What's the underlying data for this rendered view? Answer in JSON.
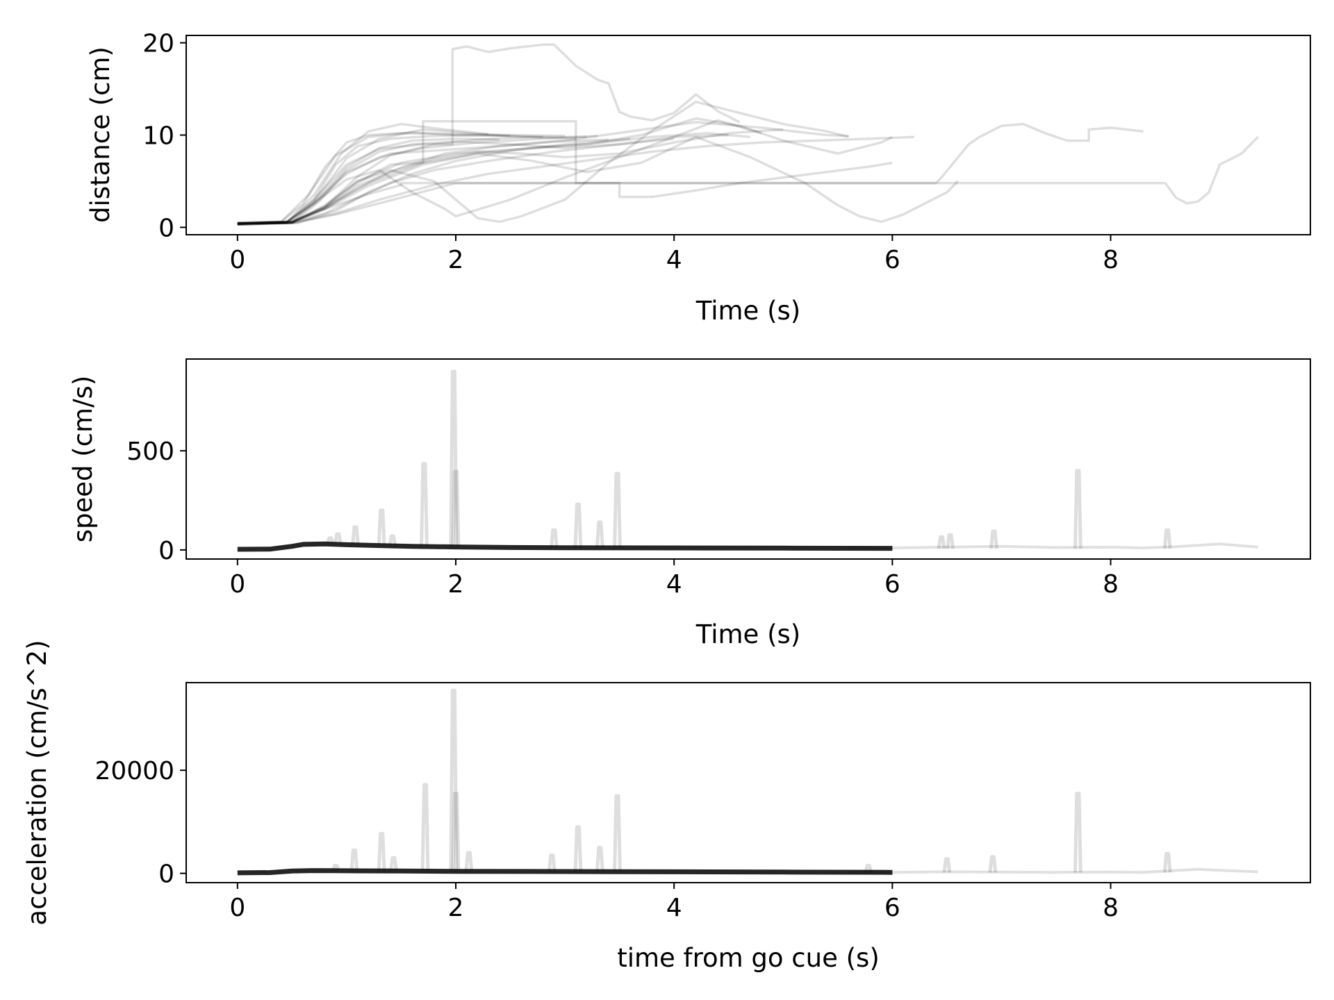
{
  "colors": {
    "trace": "#000000",
    "frame": "#000000",
    "background": "#ffffff"
  },
  "chart_data": [
    {
      "type": "line",
      "xlabel": "Time (s)",
      "ylabel": "distance (cm)",
      "xlim": [
        -0.47,
        9.83
      ],
      "ylim": [
        -0.8,
        20.8
      ],
      "xticks": [
        0,
        2,
        4,
        6,
        8
      ],
      "yticks": [
        0,
        10,
        20
      ],
      "grid": false,
      "series": [
        {
          "x": [
            0,
            0.4,
            0.6,
            0.8,
            1.0,
            1.2,
            1.5,
            2.0,
            2.5,
            3.0
          ],
          "y": [
            0.5,
            0.6,
            2.5,
            6.5,
            9.2,
            10.0,
            10.2,
            10.1,
            10.0,
            9.9
          ]
        },
        {
          "x": [
            0,
            0.45,
            0.7,
            0.9,
            1.1,
            1.4,
            1.8,
            2.3,
            2.8
          ],
          "y": [
            0.4,
            0.5,
            3.0,
            6.8,
            8.8,
            9.6,
            9.9,
            10.0,
            9.8
          ]
        },
        {
          "x": [
            0,
            0.5,
            0.8,
            1.1,
            1.4,
            1.8,
            2.2,
            2.7,
            3.2
          ],
          "y": [
            0.4,
            0.5,
            2.2,
            5.5,
            7.8,
            9.0,
            9.5,
            9.8,
            9.8
          ]
        },
        {
          "x": [
            0,
            0.45,
            0.7,
            1.0,
            1.3,
            1.7,
            2.1,
            2.6,
            3.1
          ],
          "y": [
            0.3,
            0.5,
            2.8,
            7.5,
            9.6,
            10.6,
            10.2,
            9.8,
            9.6
          ]
        },
        {
          "x": [
            0,
            0.5,
            0.8,
            1.1,
            1.5,
            1.9,
            2.4,
            2.9,
            3.4
          ],
          "y": [
            0.4,
            0.6,
            2.0,
            4.5,
            6.5,
            8.0,
            8.8,
            9.3,
            9.5
          ]
        },
        {
          "x": [
            0,
            0.4,
            0.65,
            0.9,
            1.2,
            1.6,
            2.0,
            2.5
          ],
          "y": [
            0.5,
            0.6,
            3.5,
            7.8,
            9.8,
            10.3,
            10.0,
            9.9
          ]
        },
        {
          "x": [
            0,
            0.55,
            0.9,
            1.2,
            1.6,
            2.0,
            2.5,
            3.0,
            3.6
          ],
          "y": [
            0.3,
            0.5,
            1.8,
            3.8,
            5.8,
            7.2,
            8.3,
            9.0,
            9.6
          ]
        },
        {
          "x": [
            0,
            0.5,
            0.75,
            1.0,
            1.3,
            1.6,
            2.0,
            2.4
          ],
          "y": [
            0.4,
            0.6,
            3.2,
            6.5,
            8.6,
            9.4,
            9.6,
            9.5
          ]
        },
        {
          "x": [
            0,
            0.45,
            0.7,
            1.0,
            1.3,
            1.7,
            2.2,
            2.8,
            3.3
          ],
          "y": [
            0.5,
            0.6,
            2.5,
            5.8,
            7.6,
            8.6,
            9.2,
            9.6,
            9.9
          ]
        },
        {
          "x": [
            0,
            0.5,
            0.8,
            1.1,
            1.4,
            1.8,
            2.3,
            2.9,
            3.5,
            4.0
          ],
          "y": [
            0.4,
            0.5,
            1.5,
            3.2,
            4.8,
            6.2,
            7.2,
            8.2,
            9.0,
            9.6
          ]
        },
        {
          "x": [
            0,
            0.45,
            0.7,
            0.95,
            1.2,
            1.5,
            1.9,
            2.3
          ],
          "y": [
            0.3,
            0.5,
            3.5,
            8.0,
            10.4,
            11.2,
            10.6,
            10.1
          ]
        },
        {
          "x": [
            0,
            0.5,
            0.8,
            1.1,
            1.5,
            2.0,
            2.6,
            3.2,
            3.8,
            4.3,
            4.7
          ],
          "y": [
            0.4,
            0.6,
            2.2,
            5.0,
            7.0,
            8.0,
            8.5,
            9.0,
            9.8,
            10.2,
            9.8
          ]
        },
        {
          "x": [
            0,
            0.5,
            0.75,
            1.0,
            1.3,
            1.6,
            2.0,
            2.5,
            3.0,
            3.5,
            4.0,
            4.5
          ],
          "y": [
            0.4,
            0.5,
            2.8,
            6.2,
            8.2,
            9.0,
            9.3,
            9.0,
            8.6,
            9.0,
            9.8,
            10.0
          ]
        },
        {
          "x": [
            0,
            0.5,
            0.8,
            1.1,
            1.4,
            1.8,
            2.2,
            2.6,
            3.0,
            3.5,
            4.0,
            4.5,
            5.0
          ],
          "y": [
            0.4,
            0.5,
            2.0,
            4.2,
            6.0,
            7.4,
            8.2,
            8.0,
            7.6,
            8.0,
            9.2,
            10.2,
            10.6
          ]
        },
        {
          "x": [
            0,
            0.45,
            0.7,
            1.0,
            1.4,
            1.9,
            2.4,
            3.0,
            3.6,
            4.2,
            4.8,
            5.4,
            5.6
          ],
          "y": [
            0.4,
            0.5,
            2.6,
            6.0,
            8.0,
            8.4,
            8.8,
            9.4,
            10.4,
            11.4,
            10.8,
            10.0,
            9.9
          ]
        },
        {
          "x": [
            0,
            0.55,
            0.9,
            1.3,
            1.8,
            2.3,
            2.8,
            3.3,
            3.8,
            4.3,
            4.8,
            5.3,
            5.8,
            6.2
          ],
          "y": [
            0.3,
            0.5,
            1.5,
            3.0,
            4.6,
            5.8,
            6.6,
            7.4,
            8.2,
            8.8,
            9.2,
            9.4,
            9.6,
            9.8
          ]
        },
        {
          "x": [
            0,
            0.5,
            0.8,
            1.2,
            1.7,
            2.2,
            2.7,
            3.2,
            3.7,
            4.2,
            4.6,
            5.0,
            5.5,
            5.9,
            6.0
          ],
          "y": [
            0.4,
            0.6,
            2.0,
            4.5,
            6.8,
            8.0,
            8.6,
            9.0,
            10.0,
            11.8,
            11.0,
            9.4,
            8.0,
            9.2,
            9.8
          ]
        },
        {
          "x": [
            0,
            0.45,
            0.7,
            1.0,
            1.3,
            1.7,
            1.97,
            1.97,
            2.1,
            2.3,
            2.5,
            2.8,
            2.9,
            3.1,
            3.3,
            3.4,
            3.5,
            3.6,
            3.8,
            4.0,
            4.2,
            4.4,
            4.6
          ],
          "y": [
            0.4,
            0.5,
            3.0,
            6.8,
            8.5,
            9.0,
            9.0,
            19.3,
            19.6,
            19.0,
            19.4,
            19.8,
            19.8,
            17.5,
            16.0,
            15.6,
            12.5,
            12.0,
            11.6,
            12.4,
            14.4,
            12.6,
            11.4
          ]
        },
        {
          "x": [
            0,
            0.5,
            0.8,
            1.1,
            1.4,
            1.7,
            1.7,
            2.0,
            2.4,
            2.8,
            3.1,
            3.1,
            3.5,
            3.5,
            3.8,
            4.2,
            4.6,
            5.0,
            5.4,
            5.8,
            6.0
          ],
          "y": [
            0.4,
            0.5,
            2.2,
            4.8,
            6.8,
            7.0,
            11.5,
            11.5,
            11.5,
            11.5,
            11.5,
            4.8,
            4.8,
            3.3,
            3.3,
            4.0,
            4.8,
            5.4,
            6.0,
            6.6,
            7.0
          ]
        },
        {
          "x": [
            0,
            0.5,
            0.8,
            1.2,
            1.5,
            1.5,
            2.0,
            3.0,
            4.0,
            5.0,
            6.0,
            6.4,
            6.45,
            6.7,
            6.8,
            7.0,
            7.2,
            7.4,
            7.6,
            7.8,
            7.8,
            8.0,
            8.3
          ],
          "y": [
            0.4,
            0.6,
            2.0,
            3.6,
            4.6,
            4.8,
            4.8,
            4.8,
            4.8,
            4.8,
            4.8,
            4.8,
            5.4,
            9.0,
            9.8,
            11.0,
            11.2,
            10.2,
            9.4,
            9.4,
            10.6,
            10.8,
            10.4
          ]
        },
        {
          "x": [
            0,
            0.5,
            0.9,
            1.3,
            2.0,
            3.0,
            4.0,
            5.0,
            6.0,
            7.0,
            8.0,
            8.5,
            8.6,
            8.7,
            8.8,
            8.9,
            9.0,
            9.2,
            9.35
          ],
          "y": [
            0.4,
            0.5,
            1.4,
            2.6,
            4.8,
            4.8,
            4.8,
            4.8,
            4.8,
            4.8,
            4.8,
            4.8,
            3.2,
            2.6,
            2.8,
            3.8,
            6.8,
            8.0,
            9.8
          ]
        },
        {
          "x": [
            0,
            0.5,
            0.8,
            1.1,
            1.4,
            1.8,
            2.0,
            2.2,
            2.4,
            2.6,
            3.0,
            3.4,
            3.8,
            4.2,
            4.6,
            5.0,
            5.4,
            5.6
          ],
          "y": [
            0.4,
            0.5,
            2.4,
            5.0,
            6.2,
            5.0,
            3.0,
            1.0,
            0.6,
            1.2,
            3.0,
            7.0,
            10.5,
            13.6,
            12.4,
            11.2,
            10.4,
            9.8
          ]
        },
        {
          "x": [
            0,
            0.5,
            0.8,
            1.2,
            1.7,
            2.2,
            2.7,
            3.2,
            3.7,
            4.2,
            4.7,
            5.2,
            5.5,
            5.7,
            5.9,
            6.1,
            6.3,
            6.5,
            6.6
          ],
          "y": [
            0.4,
            0.6,
            2.2,
            4.8,
            7.0,
            8.0,
            7.2,
            6.0,
            7.0,
            9.8,
            7.6,
            4.8,
            2.4,
            1.2,
            0.6,
            1.4,
            2.6,
            3.8,
            5.0
          ]
        },
        {
          "x": [
            0,
            0.45,
            0.7,
            1.0,
            1.3,
            1.6,
            1.9,
            2.0,
            2.5,
            3.0,
            3.5,
            4.0,
            4.4,
            4.8
          ],
          "y": [
            0.4,
            0.6,
            2.6,
            5.2,
            6.2,
            3.8,
            2.0,
            1.2,
            3.0,
            5.4,
            7.6,
            9.8,
            11.6,
            10.2
          ]
        }
      ]
    },
    {
      "type": "line",
      "xlabel": "Time (s)",
      "ylabel": "speed (cm/s)",
      "xlim": [
        -0.47,
        9.83
      ],
      "ylim": [
        -46,
        963
      ],
      "xticks": [
        0,
        2,
        4,
        6,
        8
      ],
      "yticks": [
        0,
        500
      ],
      "grid": false,
      "baseline": {
        "x": [
          0,
          0.3,
          0.5,
          0.6,
          0.8,
          1.0,
          1.3,
          1.6,
          2.0,
          2.5,
          3.0,
          4.0,
          5.0,
          6.0
        ],
        "y": [
          3,
          4,
          18,
          28,
          30,
          26,
          22,
          18,
          15,
          12,
          11,
          10,
          9,
          8
        ]
      },
      "tail": {
        "x": [
          5.6,
          6.0,
          6.5,
          7.0,
          7.5,
          8.0,
          8.3,
          8.6,
          9.0,
          9.35
        ],
        "y": [
          12,
          10,
          14,
          18,
          12,
          14,
          10,
          16,
          30,
          14
        ]
      },
      "spikes": [
        {
          "x": 0.85,
          "y": 60
        },
        {
          "x": 0.92,
          "y": 80
        },
        {
          "x": 1.08,
          "y": 115
        },
        {
          "x": 1.32,
          "y": 200
        },
        {
          "x": 1.42,
          "y": 70
        },
        {
          "x": 1.71,
          "y": 435
        },
        {
          "x": 1.98,
          "y": 900
        },
        {
          "x": 2.0,
          "y": 395
        },
        {
          "x": 2.9,
          "y": 100
        },
        {
          "x": 3.12,
          "y": 230
        },
        {
          "x": 3.32,
          "y": 140
        },
        {
          "x": 3.48,
          "y": 385
        },
        {
          "x": 6.45,
          "y": 65
        },
        {
          "x": 6.53,
          "y": 75
        },
        {
          "x": 6.93,
          "y": 95
        },
        {
          "x": 7.7,
          "y": 400
        },
        {
          "x": 8.52,
          "y": 100
        }
      ]
    },
    {
      "type": "line",
      "xlabel": "time from go cue (s)",
      "ylabel": "acceleration (cm/s^2)",
      "xlim": [
        -0.47,
        9.83
      ],
      "ylim": [
        -1800,
        37000
      ],
      "xticks": [
        0,
        2,
        4,
        6,
        8
      ],
      "yticks": [
        0,
        20000
      ],
      "grid": false,
      "baseline": {
        "x": [
          0,
          0.3,
          0.5,
          0.7,
          1.0,
          1.5,
          2.0,
          3.0,
          4.0,
          5.0,
          6.0
        ],
        "y": [
          100,
          150,
          450,
          550,
          500,
          450,
          400,
          350,
          300,
          250,
          200
        ]
      },
      "tail": {
        "x": [
          5.6,
          6.0,
          6.5,
          7.0,
          7.5,
          8.0,
          8.3,
          8.8,
          9.0,
          9.35
        ],
        "y": [
          250,
          200,
          300,
          250,
          200,
          250,
          200,
          800,
          600,
          300
        ]
      },
      "spikes": [
        {
          "x": 0.9,
          "y": 1500
        },
        {
          "x": 1.07,
          "y": 4500
        },
        {
          "x": 1.32,
          "y": 7700
        },
        {
          "x": 1.43,
          "y": 3000
        },
        {
          "x": 1.72,
          "y": 17200
        },
        {
          "x": 1.98,
          "y": 35500
        },
        {
          "x": 2.0,
          "y": 15500
        },
        {
          "x": 2.12,
          "y": 4000
        },
        {
          "x": 2.88,
          "y": 3500
        },
        {
          "x": 3.12,
          "y": 9000
        },
        {
          "x": 3.32,
          "y": 5000
        },
        {
          "x": 3.48,
          "y": 15000
        },
        {
          "x": 5.78,
          "y": 1500
        },
        {
          "x": 6.5,
          "y": 2800
        },
        {
          "x": 6.92,
          "y": 3200
        },
        {
          "x": 7.7,
          "y": 15500
        },
        {
          "x": 8.52,
          "y": 3800
        }
      ]
    }
  ]
}
